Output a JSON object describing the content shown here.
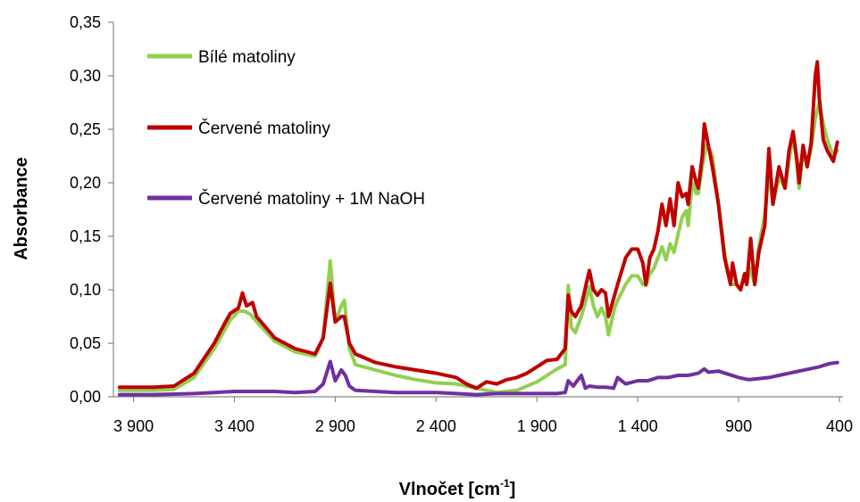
{
  "chart_data": {
    "type": "line",
    "title": "",
    "xlabel": "Vlnočet [cm",
    "xlabel_sup": "-1",
    "xlabel_end": "]",
    "ylabel": "Absorbance",
    "x_reversed": true,
    "xlim": [
      4000,
      400
    ],
    "ylim": [
      0,
      0.35
    ],
    "grid": false,
    "legend_position": "upper-left",
    "x_ticks": [
      {
        "value": 3900,
        "label": "3 900"
      },
      {
        "value": 3400,
        "label": "3 400"
      },
      {
        "value": 2900,
        "label": "2 900"
      },
      {
        "value": 2400,
        "label": "2 400"
      },
      {
        "value": 1900,
        "label": "1 900"
      },
      {
        "value": 1400,
        "label": "1 400"
      },
      {
        "value": 900,
        "label": "900"
      },
      {
        "value": 400,
        "label": "400"
      }
    ],
    "y_ticks": [
      {
        "value": 0.0,
        "label": "0,00"
      },
      {
        "value": 0.05,
        "label": "0,05"
      },
      {
        "value": 0.1,
        "label": "0,10"
      },
      {
        "value": 0.15,
        "label": "0,15"
      },
      {
        "value": 0.2,
        "label": "0,20"
      },
      {
        "value": 0.25,
        "label": "0,25"
      },
      {
        "value": 0.3,
        "label": "0,30"
      },
      {
        "value": 0.35,
        "label": "0,35"
      }
    ],
    "series": [
      {
        "name": "Bílé matoliny",
        "color": "#92d050",
        "points": [
          [
            3970,
            0.006
          ],
          [
            3800,
            0.006
          ],
          [
            3700,
            0.007
          ],
          [
            3600,
            0.018
          ],
          [
            3500,
            0.045
          ],
          [
            3450,
            0.062
          ],
          [
            3420,
            0.072
          ],
          [
            3380,
            0.08
          ],
          [
            3350,
            0.08
          ],
          [
            3320,
            0.077
          ],
          [
            3280,
            0.068
          ],
          [
            3200,
            0.052
          ],
          [
            3100,
            0.042
          ],
          [
            3000,
            0.038
          ],
          [
            2960,
            0.055
          ],
          [
            2925,
            0.127
          ],
          [
            2900,
            0.07
          ],
          [
            2870,
            0.085
          ],
          [
            2855,
            0.09
          ],
          [
            2830,
            0.045
          ],
          [
            2800,
            0.03
          ],
          [
            2700,
            0.025
          ],
          [
            2600,
            0.02
          ],
          [
            2500,
            0.016
          ],
          [
            2400,
            0.013
          ],
          [
            2300,
            0.012
          ],
          [
            2200,
            0.008
          ],
          [
            2100,
            0.004
          ],
          [
            2000,
            0.006
          ],
          [
            1900,
            0.014
          ],
          [
            1850,
            0.02
          ],
          [
            1800,
            0.026
          ],
          [
            1760,
            0.03
          ],
          [
            1745,
            0.104
          ],
          [
            1730,
            0.065
          ],
          [
            1710,
            0.06
          ],
          [
            1680,
            0.075
          ],
          [
            1650,
            0.095
          ],
          [
            1640,
            0.103
          ],
          [
            1620,
            0.085
          ],
          [
            1600,
            0.075
          ],
          [
            1580,
            0.083
          ],
          [
            1560,
            0.075
          ],
          [
            1545,
            0.058
          ],
          [
            1515,
            0.083
          ],
          [
            1500,
            0.09
          ],
          [
            1460,
            0.105
          ],
          [
            1430,
            0.113
          ],
          [
            1400,
            0.113
          ],
          [
            1375,
            0.105
          ],
          [
            1360,
            0.104
          ],
          [
            1340,
            0.115
          ],
          [
            1320,
            0.12
          ],
          [
            1300,
            0.13
          ],
          [
            1280,
            0.14
          ],
          [
            1260,
            0.128
          ],
          [
            1240,
            0.143
          ],
          [
            1220,
            0.135
          ],
          [
            1200,
            0.152
          ],
          [
            1180,
            0.168
          ],
          [
            1160,
            0.174
          ],
          [
            1150,
            0.16
          ],
          [
            1130,
            0.2
          ],
          [
            1110,
            0.19
          ],
          [
            1100,
            0.19
          ],
          [
            1080,
            0.215
          ],
          [
            1060,
            0.235
          ],
          [
            1040,
            0.23
          ],
          [
            1030,
            0.225
          ],
          [
            1000,
            0.18
          ],
          [
            970,
            0.135
          ],
          [
            940,
            0.105
          ],
          [
            910,
            0.105
          ],
          [
            890,
            0.1
          ],
          [
            870,
            0.115
          ],
          [
            860,
            0.105
          ],
          [
            840,
            0.12
          ],
          [
            820,
            0.105
          ],
          [
            800,
            0.14
          ],
          [
            770,
            0.17
          ],
          [
            750,
            0.21
          ],
          [
            730,
            0.18
          ],
          [
            700,
            0.205
          ],
          [
            670,
            0.195
          ],
          [
            650,
            0.22
          ],
          [
            630,
            0.245
          ],
          [
            610,
            0.215
          ],
          [
            600,
            0.195
          ],
          [
            580,
            0.23
          ],
          [
            560,
            0.215
          ],
          [
            540,
            0.233
          ],
          [
            520,
            0.26
          ],
          [
            500,
            0.275
          ],
          [
            480,
            0.255
          ],
          [
            460,
            0.24
          ],
          [
            430,
            0.225
          ],
          [
            410,
            0.23
          ]
        ]
      },
      {
        "name": "Červené matoliny",
        "color": "#c00000",
        "points": [
          [
            3970,
            0.009
          ],
          [
            3800,
            0.009
          ],
          [
            3700,
            0.01
          ],
          [
            3600,
            0.022
          ],
          [
            3500,
            0.05
          ],
          [
            3450,
            0.068
          ],
          [
            3420,
            0.078
          ],
          [
            3380,
            0.083
          ],
          [
            3360,
            0.097
          ],
          [
            3340,
            0.085
          ],
          [
            3310,
            0.088
          ],
          [
            3290,
            0.075
          ],
          [
            3200,
            0.055
          ],
          [
            3100,
            0.045
          ],
          [
            3000,
            0.04
          ],
          [
            2960,
            0.055
          ],
          [
            2925,
            0.106
          ],
          [
            2900,
            0.07
          ],
          [
            2870,
            0.075
          ],
          [
            2855,
            0.075
          ],
          [
            2830,
            0.05
          ],
          [
            2800,
            0.04
          ],
          [
            2700,
            0.032
          ],
          [
            2600,
            0.028
          ],
          [
            2500,
            0.025
          ],
          [
            2400,
            0.022
          ],
          [
            2300,
            0.018
          ],
          [
            2250,
            0.012
          ],
          [
            2200,
            0.008
          ],
          [
            2150,
            0.014
          ],
          [
            2100,
            0.012
          ],
          [
            2050,
            0.016
          ],
          [
            2000,
            0.018
          ],
          [
            1950,
            0.022
          ],
          [
            1900,
            0.028
          ],
          [
            1850,
            0.034
          ],
          [
            1800,
            0.035
          ],
          [
            1760,
            0.045
          ],
          [
            1745,
            0.095
          ],
          [
            1730,
            0.08
          ],
          [
            1710,
            0.075
          ],
          [
            1680,
            0.085
          ],
          [
            1650,
            0.11
          ],
          [
            1640,
            0.118
          ],
          [
            1620,
            0.1
          ],
          [
            1600,
            0.095
          ],
          [
            1580,
            0.1
          ],
          [
            1560,
            0.097
          ],
          [
            1545,
            0.075
          ],
          [
            1515,
            0.095
          ],
          [
            1500,
            0.105
          ],
          [
            1460,
            0.13
          ],
          [
            1430,
            0.138
          ],
          [
            1400,
            0.138
          ],
          [
            1375,
            0.125
          ],
          [
            1360,
            0.105
          ],
          [
            1340,
            0.13
          ],
          [
            1320,
            0.138
          ],
          [
            1300,
            0.155
          ],
          [
            1280,
            0.18
          ],
          [
            1260,
            0.16
          ],
          [
            1240,
            0.185
          ],
          [
            1220,
            0.16
          ],
          [
            1200,
            0.2
          ],
          [
            1180,
            0.187
          ],
          [
            1160,
            0.19
          ],
          [
            1150,
            0.18
          ],
          [
            1130,
            0.215
          ],
          [
            1110,
            0.2
          ],
          [
            1100,
            0.195
          ],
          [
            1080,
            0.225
          ],
          [
            1070,
            0.255
          ],
          [
            1050,
            0.235
          ],
          [
            1040,
            0.225
          ],
          [
            1030,
            0.215
          ],
          [
            1000,
            0.18
          ],
          [
            970,
            0.13
          ],
          [
            940,
            0.105
          ],
          [
            930,
            0.125
          ],
          [
            910,
            0.105
          ],
          [
            890,
            0.1
          ],
          [
            870,
            0.115
          ],
          [
            860,
            0.105
          ],
          [
            840,
            0.148
          ],
          [
            820,
            0.105
          ],
          [
            800,
            0.135
          ],
          [
            770,
            0.16
          ],
          [
            750,
            0.232
          ],
          [
            730,
            0.18
          ],
          [
            700,
            0.215
          ],
          [
            670,
            0.195
          ],
          [
            650,
            0.23
          ],
          [
            630,
            0.248
          ],
          [
            610,
            0.22
          ],
          [
            600,
            0.2
          ],
          [
            580,
            0.235
          ],
          [
            560,
            0.215
          ],
          [
            540,
            0.238
          ],
          [
            520,
            0.3
          ],
          [
            510,
            0.313
          ],
          [
            500,
            0.28
          ],
          [
            480,
            0.24
          ],
          [
            460,
            0.23
          ],
          [
            430,
            0.22
          ],
          [
            410,
            0.238
          ]
        ]
      },
      {
        "name": "Červené matoliny + 1M NaOH",
        "color": "#7030a0",
        "points": [
          [
            3970,
            0.002
          ],
          [
            3800,
            0.002
          ],
          [
            3600,
            0.003
          ],
          [
            3500,
            0.004
          ],
          [
            3400,
            0.005
          ],
          [
            3300,
            0.005
          ],
          [
            3200,
            0.005
          ],
          [
            3100,
            0.004
          ],
          [
            3000,
            0.005
          ],
          [
            2960,
            0.012
          ],
          [
            2925,
            0.033
          ],
          [
            2900,
            0.015
          ],
          [
            2870,
            0.025
          ],
          [
            2850,
            0.02
          ],
          [
            2830,
            0.01
          ],
          [
            2800,
            0.006
          ],
          [
            2700,
            0.005
          ],
          [
            2600,
            0.004
          ],
          [
            2500,
            0.004
          ],
          [
            2400,
            0.004
          ],
          [
            2300,
            0.003
          ],
          [
            2200,
            0.002
          ],
          [
            2100,
            0.003
          ],
          [
            2000,
            0.003
          ],
          [
            1900,
            0.003
          ],
          [
            1800,
            0.003
          ],
          [
            1760,
            0.004
          ],
          [
            1745,
            0.015
          ],
          [
            1720,
            0.01
          ],
          [
            1700,
            0.015
          ],
          [
            1680,
            0.02
          ],
          [
            1660,
            0.008
          ],
          [
            1640,
            0.01
          ],
          [
            1600,
            0.009
          ],
          [
            1560,
            0.009
          ],
          [
            1520,
            0.008
          ],
          [
            1500,
            0.018
          ],
          [
            1460,
            0.012
          ],
          [
            1400,
            0.015
          ],
          [
            1350,
            0.015
          ],
          [
            1300,
            0.018
          ],
          [
            1250,
            0.018
          ],
          [
            1200,
            0.02
          ],
          [
            1150,
            0.02
          ],
          [
            1100,
            0.022
          ],
          [
            1070,
            0.026
          ],
          [
            1050,
            0.023
          ],
          [
            1000,
            0.024
          ],
          [
            950,
            0.021
          ],
          [
            900,
            0.018
          ],
          [
            850,
            0.016
          ],
          [
            800,
            0.017
          ],
          [
            750,
            0.018
          ],
          [
            700,
            0.02
          ],
          [
            650,
            0.022
          ],
          [
            600,
            0.024
          ],
          [
            550,
            0.026
          ],
          [
            500,
            0.028
          ],
          [
            450,
            0.031
          ],
          [
            410,
            0.032
          ]
        ]
      }
    ]
  }
}
